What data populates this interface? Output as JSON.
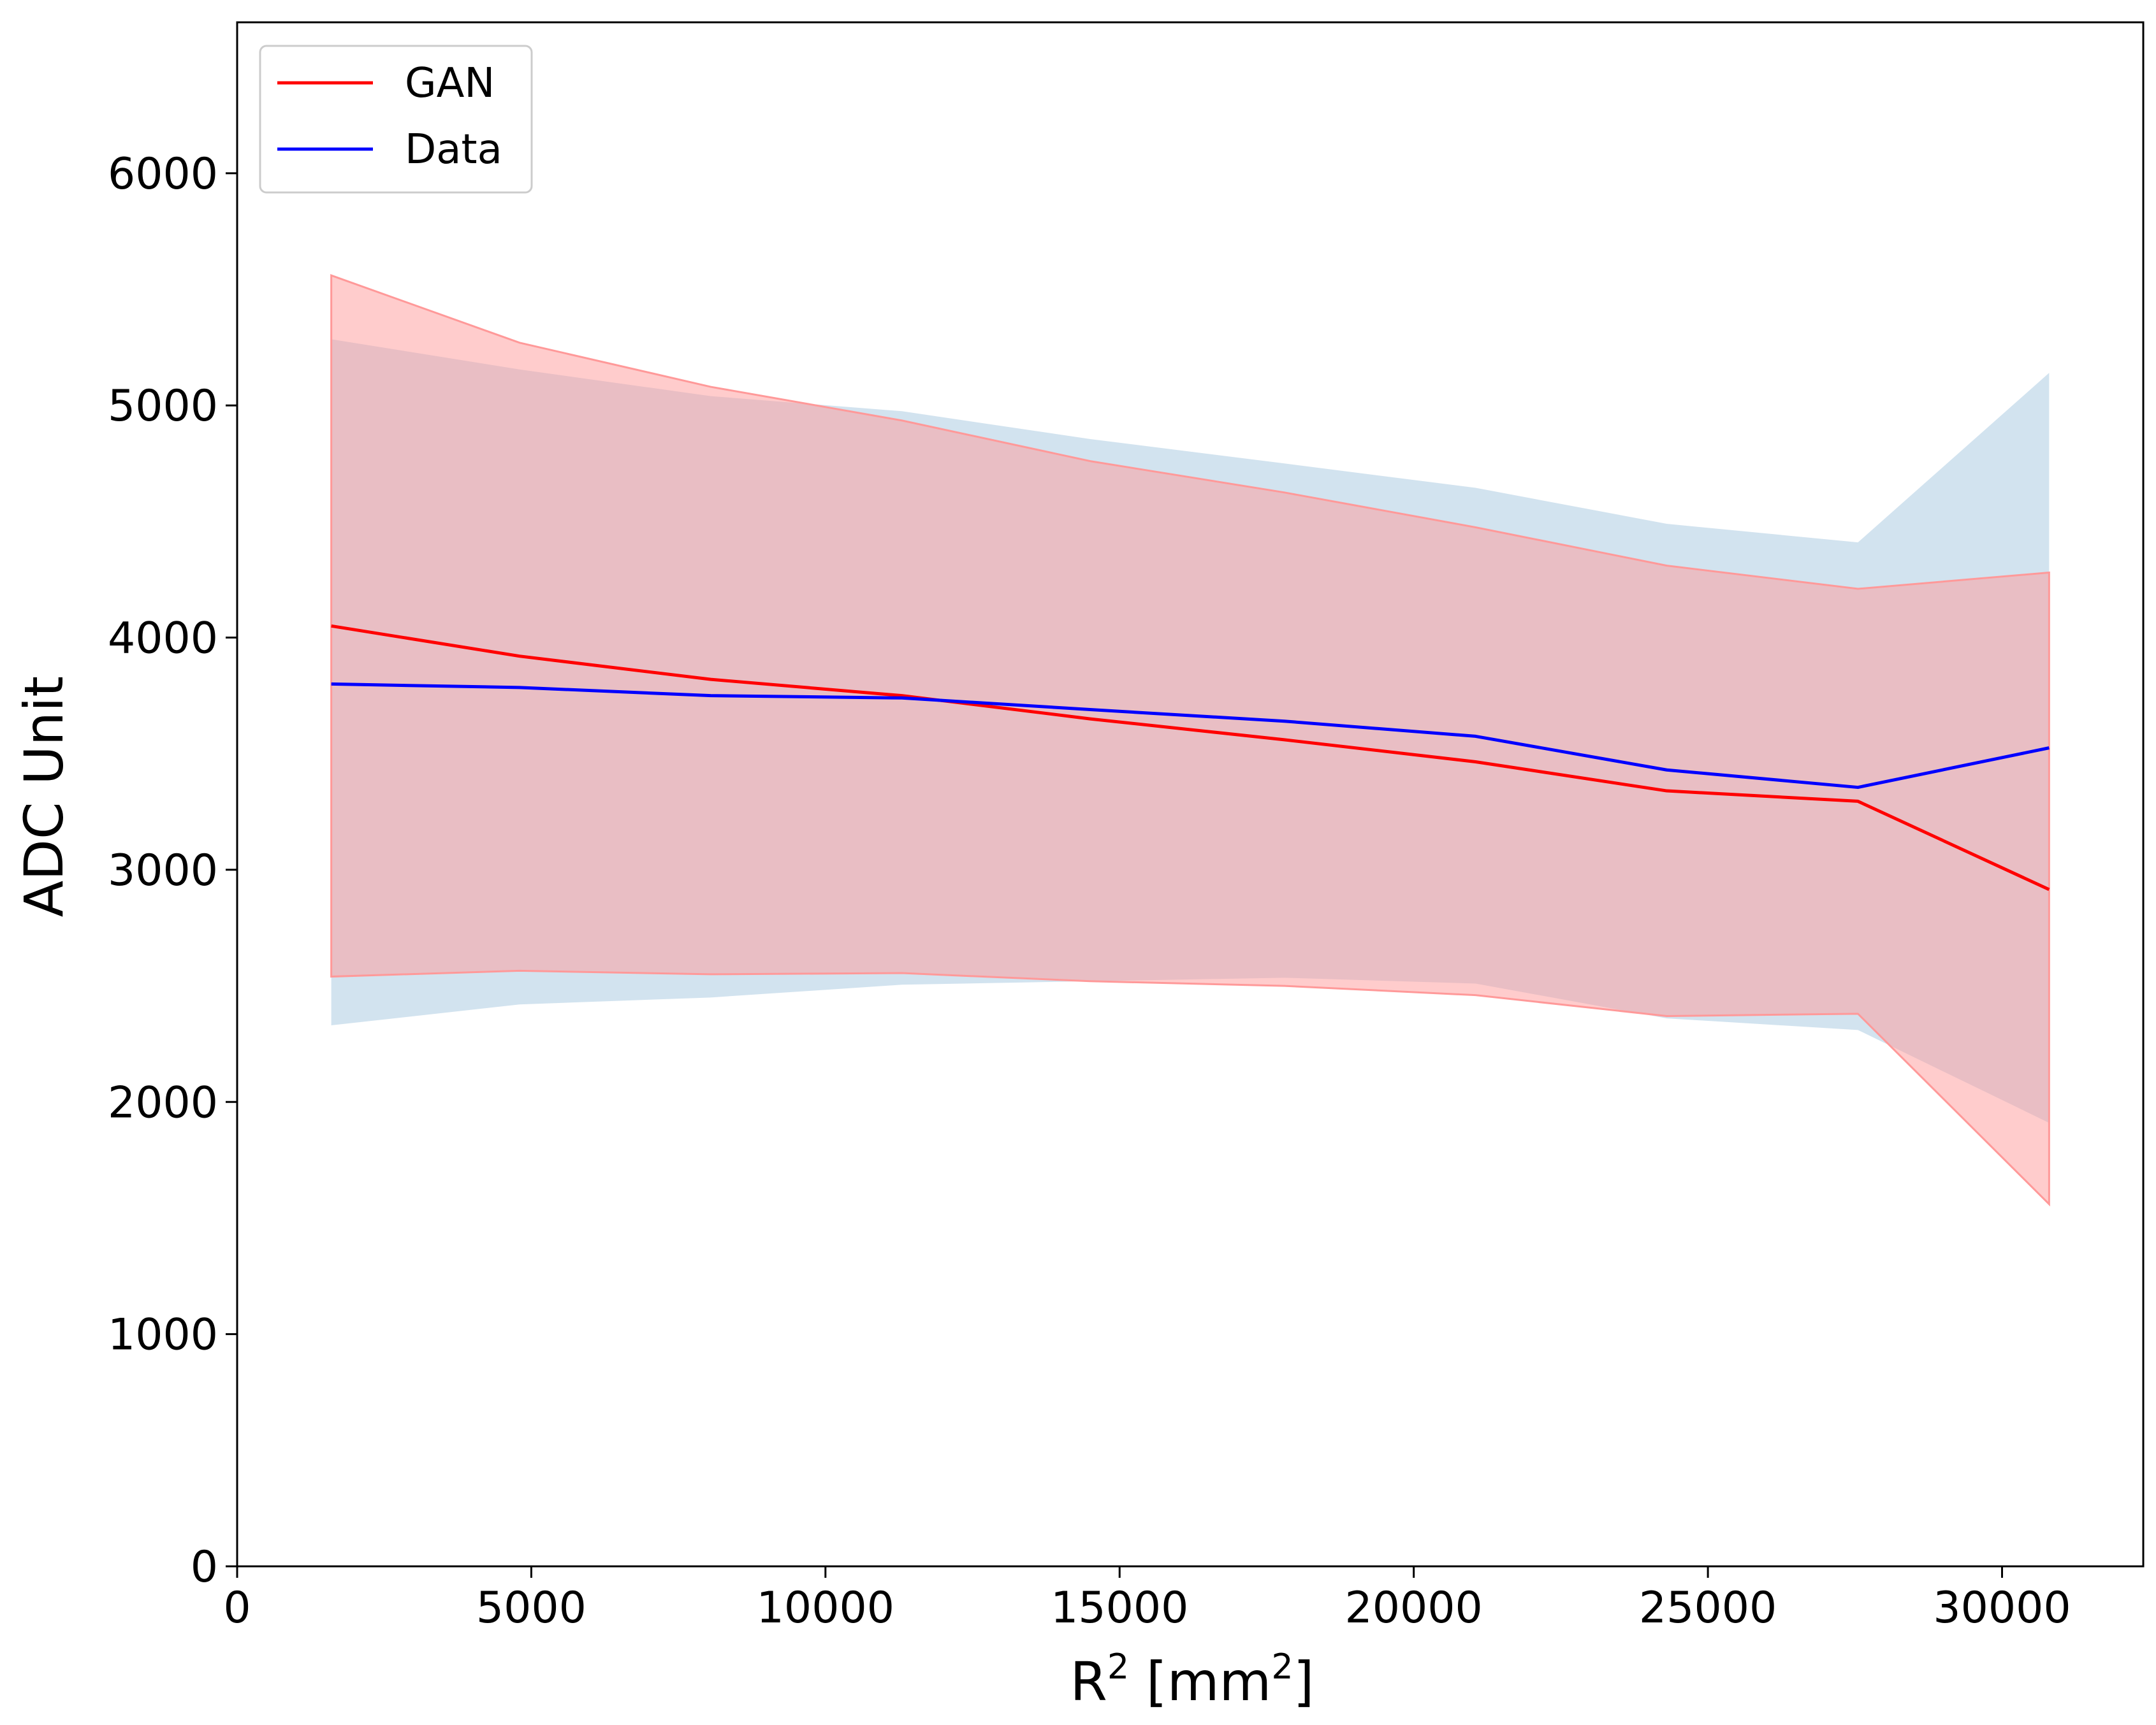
{
  "chart_data": {
    "type": "line",
    "xlabel": "R",
    "xlabel_sup": "2",
    "xlabel_unit_open": " [mm",
    "xlabel_unit_sup": "2",
    "xlabel_unit_close": "]",
    "ylabel": "ADC Unit",
    "xlim": [
      0,
      32400
    ],
    "ylim": [
      0,
      6650
    ],
    "xticks": [
      0,
      5000,
      10000,
      15000,
      20000,
      25000,
      30000
    ],
    "yticks": [
      0,
      1000,
      2000,
      3000,
      4000,
      5000,
      6000
    ],
    "x": [
      1600,
      4800,
      8050,
      11300,
      14500,
      17800,
      21050,
      24300,
      27550,
      30800
    ],
    "legend_position": "upper-left",
    "series": [
      {
        "name": "GAN",
        "color": "#ff0000",
        "band_color": "#ff9999",
        "values": [
          4050,
          3920,
          3820,
          3750,
          3650,
          3560,
          3465,
          3340,
          3295,
          2915
        ],
        "upper": [
          5560,
          5270,
          5080,
          4935,
          4760,
          4625,
          4475,
          4310,
          4210,
          4280
        ],
        "lower": [
          2540,
          2565,
          2550,
          2555,
          2520,
          2500,
          2460,
          2370,
          2380,
          1560
        ]
      },
      {
        "name": "Data",
        "color": "#0000ff",
        "band_color": "#a6c8e0",
        "values": [
          3800,
          3785,
          3750,
          3740,
          3690,
          3640,
          3575,
          3430,
          3355,
          3525
        ],
        "upper": [
          5285,
          5155,
          5040,
          4975,
          4855,
          4750,
          4645,
          4490,
          4410,
          5140
        ],
        "lower": [
          2330,
          2420,
          2450,
          2505,
          2520,
          2535,
          2510,
          2360,
          2310,
          1910
        ]
      }
    ]
  }
}
